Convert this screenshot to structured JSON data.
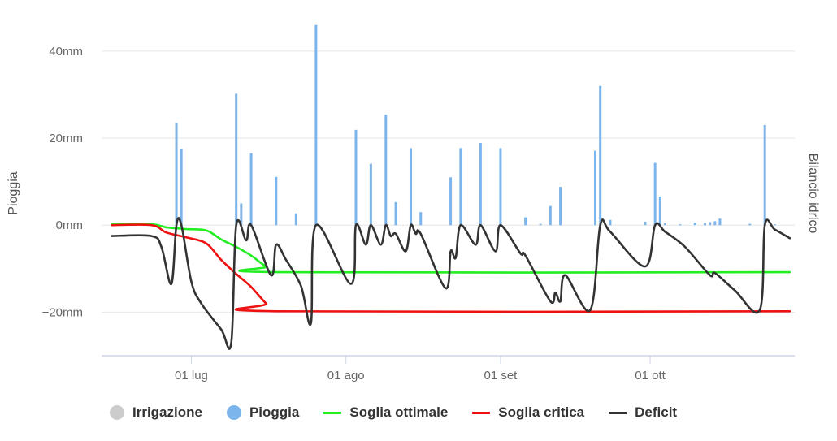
{
  "chart_data": {
    "type": "bar",
    "left_axis_title": "Pioggia",
    "right_axis_title": "Bilancio idrico",
    "y_unit": "mm",
    "ylim": [
      -30,
      48
    ],
    "y_ticks": [
      40,
      20,
      0,
      -20
    ],
    "y_tick_labels": [
      "40mm",
      "20mm",
      "0mm",
      "−20mm"
    ],
    "x_range": [
      "2024-06-13",
      "2024-10-30"
    ],
    "x_ticks": [
      {
        "date": "2024-07-01",
        "label": "01 lug"
      },
      {
        "date": "2024-08-01",
        "label": "01 ago"
      },
      {
        "date": "2024-09-01",
        "label": "01 set"
      },
      {
        "date": "2024-10-01",
        "label": "01 ott"
      }
    ],
    "grid": true,
    "legend_position": "bottom-left",
    "series": [
      {
        "name": "Irrigazione",
        "type": "bar",
        "color": "#cccccc",
        "symbol": "circle",
        "points": []
      },
      {
        "name": "Pioggia",
        "type": "bar",
        "color": "#7cb5ec",
        "symbol": "circle",
        "points": [
          [
            "2024-06-28",
            23.5
          ],
          [
            "2024-06-29",
            17.5
          ],
          [
            "2024-07-10",
            30.2
          ],
          [
            "2024-07-11",
            5.0
          ],
          [
            "2024-07-13",
            16.5
          ],
          [
            "2024-07-18",
            11.1
          ],
          [
            "2024-07-22",
            2.7
          ],
          [
            "2024-07-26",
            46.0
          ],
          [
            "2024-08-03",
            21.9
          ],
          [
            "2024-08-06",
            14.1
          ],
          [
            "2024-08-09",
            25.4
          ],
          [
            "2024-08-11",
            5.3
          ],
          [
            "2024-08-14",
            17.7
          ],
          [
            "2024-08-16",
            3.0
          ],
          [
            "2024-08-22",
            11.0
          ],
          [
            "2024-08-24",
            17.7
          ],
          [
            "2024-08-28",
            18.9
          ],
          [
            "2024-09-01",
            17.7
          ],
          [
            "2024-09-06",
            1.8
          ],
          [
            "2024-09-09",
            0.3
          ],
          [
            "2024-09-11",
            4.4
          ],
          [
            "2024-09-13",
            8.8
          ],
          [
            "2024-09-20",
            17.1
          ],
          [
            "2024-09-21",
            32.0
          ],
          [
            "2024-09-23",
            1.2
          ],
          [
            "2024-09-30",
            0.8
          ],
          [
            "2024-10-02",
            14.3
          ],
          [
            "2024-10-03",
            6.6
          ],
          [
            "2024-10-04",
            0.4
          ],
          [
            "2024-10-07",
            0.2
          ],
          [
            "2024-10-10",
            0.6
          ],
          [
            "2024-10-12",
            0.5
          ],
          [
            "2024-10-13",
            0.7
          ],
          [
            "2024-10-14",
            0.9
          ],
          [
            "2024-10-15",
            1.5
          ],
          [
            "2024-10-21",
            0.3
          ],
          [
            "2024-10-24",
            23.0
          ],
          [
            "2024-10-26",
            0.2
          ]
        ]
      },
      {
        "name": "Soglia ottimale",
        "type": "line",
        "color": "#22ee22",
        "symbol": "line",
        "points": [
          [
            "2024-06-15",
            0.2
          ],
          [
            "2024-06-23",
            0.2
          ],
          [
            "2024-06-26",
            -0.5
          ],
          [
            "2024-06-30",
            -0.9
          ],
          [
            "2024-07-04",
            -1.2
          ],
          [
            "2024-07-07",
            -3.3
          ],
          [
            "2024-07-10",
            -5.0
          ],
          [
            "2024-07-13",
            -7.0
          ],
          [
            "2024-07-16",
            -9.5
          ],
          [
            "2024-07-19",
            -10.8
          ],
          [
            "2024-10-29",
            -10.8
          ]
        ]
      },
      {
        "name": "Soglia critica",
        "type": "line",
        "color": "#ee1111",
        "symbol": "line",
        "points": [
          [
            "2024-06-15",
            0.0
          ],
          [
            "2024-06-23",
            0.0
          ],
          [
            "2024-06-26",
            -1.7
          ],
          [
            "2024-06-30",
            -2.8
          ],
          [
            "2024-07-04",
            -4.2
          ],
          [
            "2024-07-07",
            -8.0
          ],
          [
            "2024-07-10",
            -11.2
          ],
          [
            "2024-07-13",
            -14.2
          ],
          [
            "2024-07-16",
            -18.0
          ],
          [
            "2024-07-18",
            -19.8
          ],
          [
            "2024-10-29",
            -19.8
          ]
        ]
      },
      {
        "name": "Deficit",
        "type": "line",
        "color": "#333333",
        "symbol": "line",
        "points": [
          [
            "2024-06-15",
            -2.5
          ],
          [
            "2024-06-23",
            -2.5
          ],
          [
            "2024-06-25",
            -5.0
          ],
          [
            "2024-06-27",
            -13.5
          ],
          [
            "2024-06-28",
            0.0
          ],
          [
            "2024-06-29",
            0.0
          ],
          [
            "2024-07-01",
            -13.0
          ],
          [
            "2024-07-03",
            -18.0
          ],
          [
            "2024-07-07",
            -24.0
          ],
          [
            "2024-07-09",
            -27.0
          ],
          [
            "2024-07-10",
            0.0
          ],
          [
            "2024-07-12",
            -3.5
          ],
          [
            "2024-07-13",
            0.0
          ],
          [
            "2024-07-17",
            -11.5
          ],
          [
            "2024-07-18",
            -4.5
          ],
          [
            "2024-07-20",
            -8.0
          ],
          [
            "2024-07-23",
            -14.0
          ],
          [
            "2024-07-25",
            -22.5
          ],
          [
            "2024-07-26",
            0.0
          ],
          [
            "2024-08-02",
            -13.5
          ],
          [
            "2024-08-03",
            0.0
          ],
          [
            "2024-08-05",
            -4.5
          ],
          [
            "2024-08-06",
            0.0
          ],
          [
            "2024-08-08",
            -4.5
          ],
          [
            "2024-08-09",
            0.0
          ],
          [
            "2024-08-10",
            -2.5
          ],
          [
            "2024-08-11",
            -2.0
          ],
          [
            "2024-08-13",
            -6.0
          ],
          [
            "2024-08-14",
            0.0
          ],
          [
            "2024-08-15",
            -2.0
          ],
          [
            "2024-08-16",
            -2.0
          ],
          [
            "2024-08-21",
            -14.5
          ],
          [
            "2024-08-22",
            -6.0
          ],
          [
            "2024-08-23",
            -7.5
          ],
          [
            "2024-08-24",
            0.0
          ],
          [
            "2024-08-27",
            -4.5
          ],
          [
            "2024-08-28",
            0.0
          ],
          [
            "2024-08-31",
            -6.0
          ],
          [
            "2024-09-01",
            0.0
          ],
          [
            "2024-09-05",
            -6.5
          ],
          [
            "2024-09-06",
            -7.0
          ],
          [
            "2024-09-11",
            -17.5
          ],
          [
            "2024-09-12",
            -15.5
          ],
          [
            "2024-09-13",
            -17.5
          ],
          [
            "2024-09-14",
            -11.5
          ],
          [
            "2024-09-19",
            -19.5
          ],
          [
            "2024-09-21",
            0.0
          ],
          [
            "2024-09-23",
            -1.5
          ],
          [
            "2024-09-30",
            -9.5
          ],
          [
            "2024-10-02",
            0.0
          ],
          [
            "2024-10-04",
            -1.5
          ],
          [
            "2024-10-08",
            -5.0
          ],
          [
            "2024-10-13",
            -11.5
          ],
          [
            "2024-10-14",
            -11.0
          ],
          [
            "2024-10-18",
            -15.0
          ],
          [
            "2024-10-23",
            -19.5
          ],
          [
            "2024-10-24",
            0.0
          ],
          [
            "2024-10-26",
            -1.0
          ],
          [
            "2024-10-29",
            -3.0
          ]
        ]
      }
    ]
  }
}
